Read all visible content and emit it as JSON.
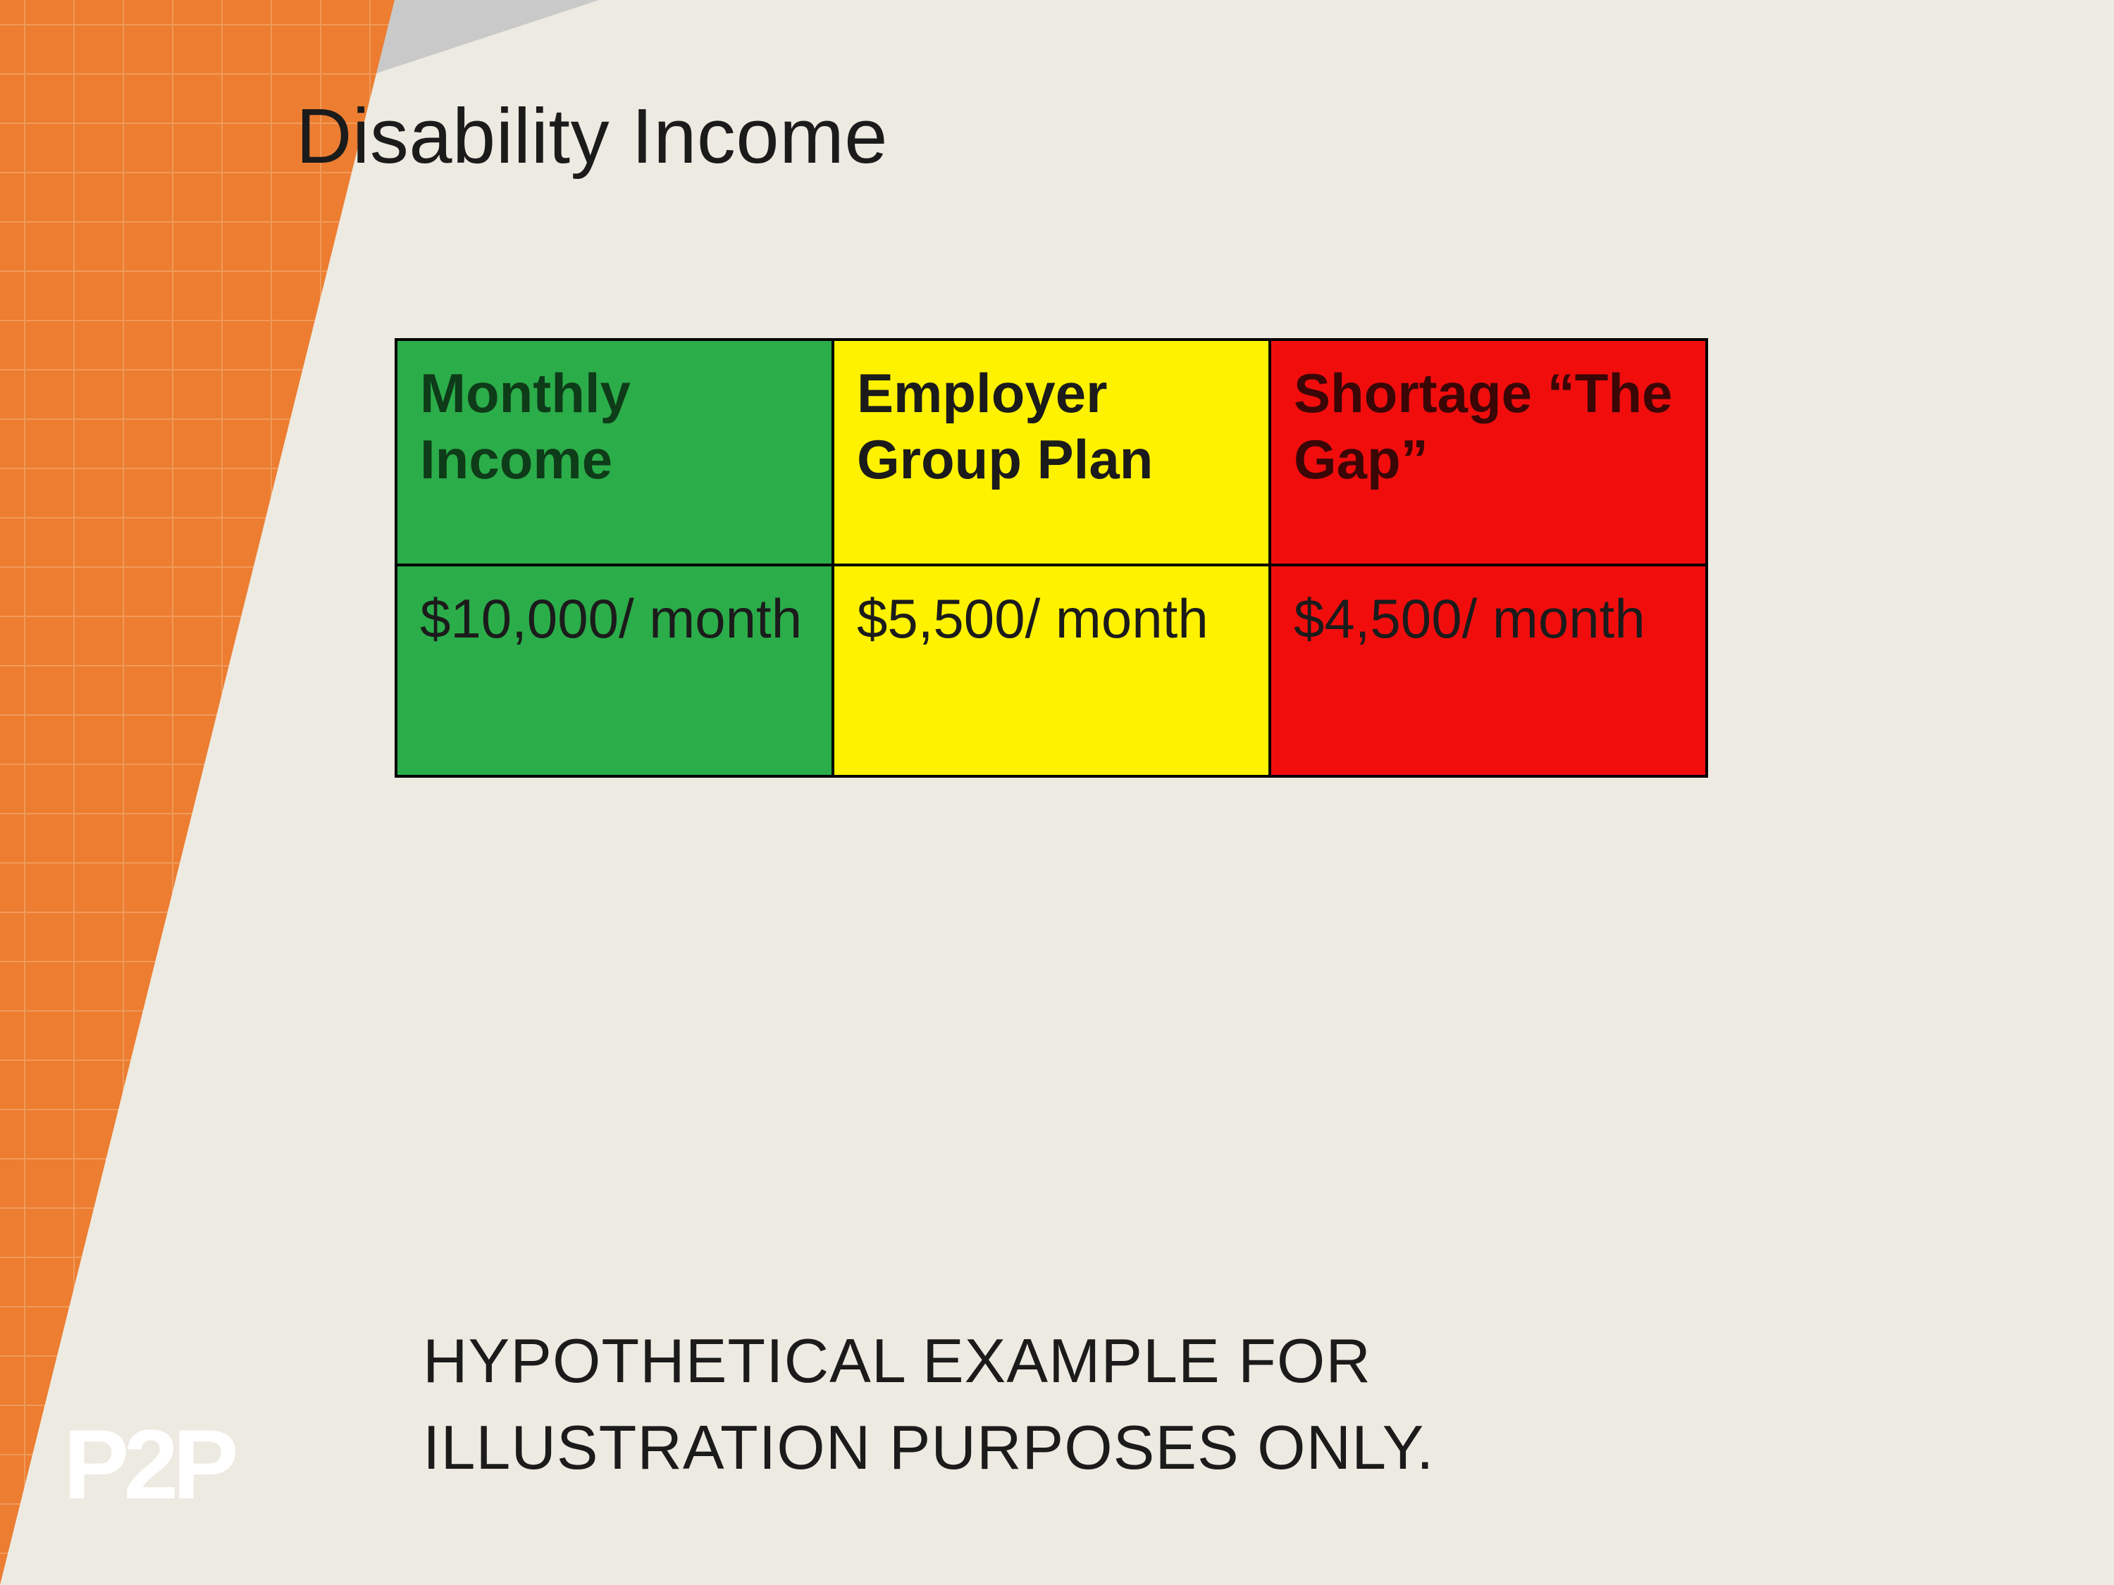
{
  "slide": {
    "background_color": "#edeae1",
    "title": "Disability Income",
    "title_color": "#1b1b1b",
    "disclaimer": "HYPOTHETICAL EXAMPLE FOR\nILLUSTRATION PURPOSES ONLY.",
    "disclaimer_color": "#1b1b1b"
  },
  "decor": {
    "orange_color": "#ec7d31",
    "orange_crosshatch": "#f19a5a",
    "gray_color": "#c9c9c9"
  },
  "table": {
    "border_color": "#000000",
    "columns": [
      {
        "header": "Monthly Income",
        "value": "$10,000/ month",
        "bg": "#2bad4a",
        "header_text_color": "#0e3b18",
        "value_text_color": "#1b1b1b"
      },
      {
        "header": "Employer Group Plan",
        "value": "$5,500/ month",
        "bg": "#fff200",
        "header_text_color": "#1b1b1b",
        "value_text_color": "#1b1b1b"
      },
      {
        "header": "Shortage “The Gap”",
        "value": "$4,500/ month",
        "bg": "#f20d0d",
        "header_text_color": "#3a0606",
        "value_text_color": "#1b1b1b"
      }
    ]
  },
  "logo": {
    "text": "P2P",
    "color": "#ffffff"
  }
}
